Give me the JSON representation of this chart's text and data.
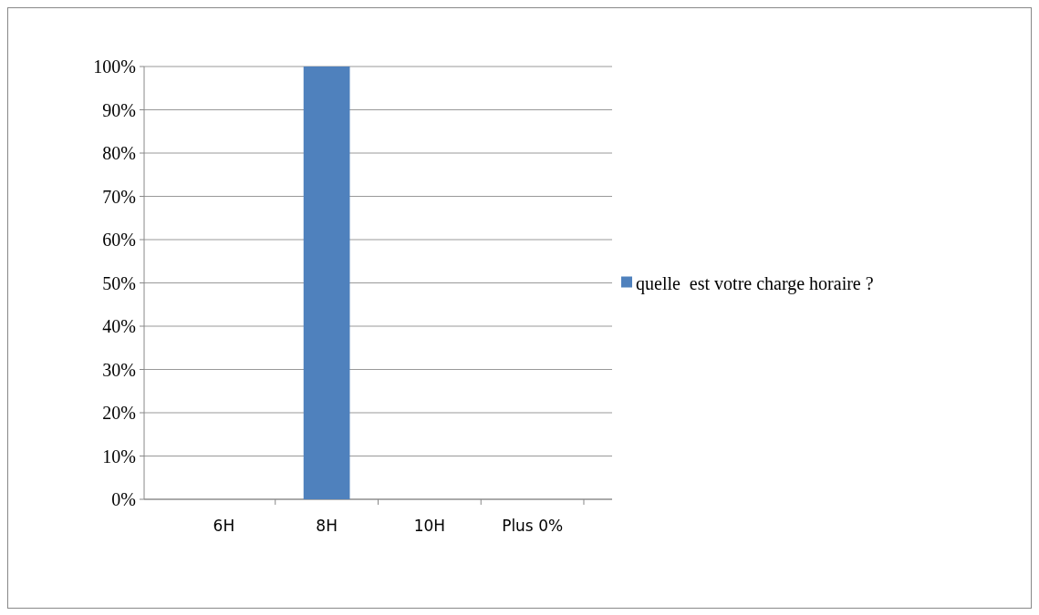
{
  "chart_data": {
    "type": "bar",
    "categories": [
      "6H",
      "8H",
      "10H",
      "Plus 0%"
    ],
    "series": [
      {
        "name": "quelle  est votre charge horaire ?",
        "color": "#4f81bd",
        "values": [
          0,
          100,
          0,
          0
        ]
      }
    ],
    "ylim": [
      0,
      100
    ],
    "yticks": [
      {
        "value": 0,
        "label": "0%"
      },
      {
        "value": 10,
        "label": "10%"
      },
      {
        "value": 20,
        "label": "20%"
      },
      {
        "value": 30,
        "label": "30%"
      },
      {
        "value": 40,
        "label": "40%"
      },
      {
        "value": 50,
        "label": "50%"
      },
      {
        "value": 60,
        "label": "60%"
      },
      {
        "value": 70,
        "label": "70%"
      },
      {
        "value": 80,
        "label": "80%"
      },
      {
        "value": 90,
        "label": "90%"
      },
      {
        "value": 100,
        "label": "100%"
      }
    ],
    "grid": "y",
    "legend": "right"
  }
}
